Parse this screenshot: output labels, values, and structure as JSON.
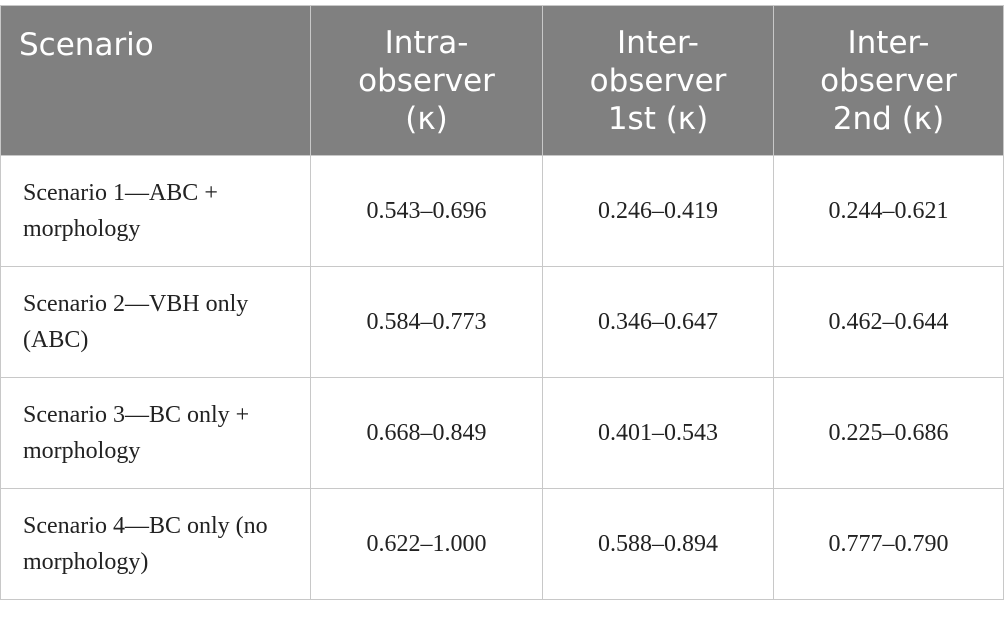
{
  "table": {
    "header": [
      "Scenario",
      "Intra-observer (κ)",
      "Inter-observer 1st (κ)",
      "Inter-observer 2nd (κ)"
    ],
    "rows": [
      [
        "Scenario 1—ABC + morphology",
        "0.543–0.696",
        "0.246–0.419",
        "0.244–0.621"
      ],
      [
        "Scenario 2—VBH only (ABC)",
        "0.584–0.773",
        "0.346–0.647",
        "0.462–0.644"
      ],
      [
        "Scenario 3—BC only + morphology",
        "0.668–0.849",
        "0.401–0.543",
        "0.225–0.686"
      ],
      [
        "Scenario 4—BC only (no morphology)",
        "0.622–1.000",
        "0.588–0.894",
        "0.777–0.790"
      ]
    ]
  }
}
